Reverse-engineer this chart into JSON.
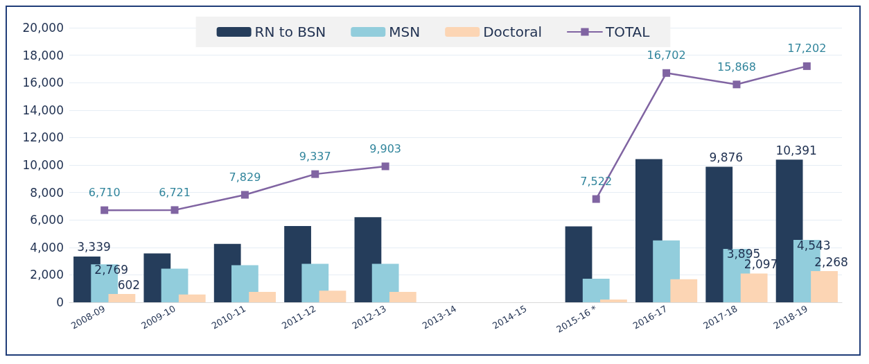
{
  "chart_data": {
    "type": "bar",
    "categories": [
      "2008-09",
      "2009-10",
      "2010-11",
      "2011-12",
      "2012-13",
      "2013-14",
      "2014-15",
      "2015-16 *",
      "2016-17",
      "2017-18",
      "2018-19"
    ],
    "series": [
      {
        "name": "RN to BSN",
        "color": "#253d5b",
        "values": [
          3339,
          3560,
          4250,
          5560,
          6200,
          null,
          null,
          5530,
          10430,
          9876,
          10391
        ],
        "value_labels": [
          "3,339",
          null,
          null,
          null,
          null,
          null,
          null,
          null,
          null,
          "9,876",
          "10,391"
        ]
      },
      {
        "name": "MSN",
        "color": "#92cddc",
        "values": [
          2769,
          2450,
          2700,
          2800,
          2800,
          null,
          null,
          1720,
          4510,
          3895,
          4543
        ],
        "value_labels": [
          "2,769",
          null,
          null,
          null,
          null,
          null,
          null,
          null,
          null,
          "3,895",
          "4,543"
        ]
      },
      {
        "name": "Doctoral",
        "color": "#fcd5b4",
        "values": [
          602,
          570,
          760,
          840,
          760,
          null,
          null,
          200,
          1680,
          2097,
          2268
        ],
        "value_labels": [
          "602",
          null,
          null,
          null,
          null,
          null,
          null,
          null,
          null,
          "2,097",
          "2,268"
        ]
      },
      {
        "name": "TOTAL",
        "type": "line",
        "color": "#8064a2",
        "values": [
          6710,
          6721,
          7829,
          9337,
          9903,
          null,
          null,
          7522,
          16702,
          15868,
          17202
        ],
        "value_labels": [
          "6,710",
          "6,721",
          "7,829",
          "9,337",
          "9,903",
          null,
          null,
          "7,522",
          "16,702",
          "15,868",
          "17,202"
        ]
      }
    ],
    "ylim": [
      0,
      20000
    ],
    "yticks": [
      0,
      {
        "value": 2000,
        "label": "2,000"
      },
      {
        "value": 4000,
        "label": "4,000"
      },
      {
        "value": 6000,
        "label": "6,000"
      },
      {
        "value": 8000,
        "label": "8,000"
      },
      {
        "value": 10000,
        "label": "10,000"
      },
      {
        "value": 12000,
        "label": "12,000"
      },
      {
        "value": 14000,
        "label": "14,000"
      },
      {
        "value": 16000,
        "label": "16,000"
      },
      {
        "value": 18000,
        "label": "18,000"
      },
      {
        "value": 20000,
        "label": "20,000"
      }
    ],
    "grid": "y",
    "legend": "top",
    "marker": "square",
    "line_style": "solid"
  }
}
